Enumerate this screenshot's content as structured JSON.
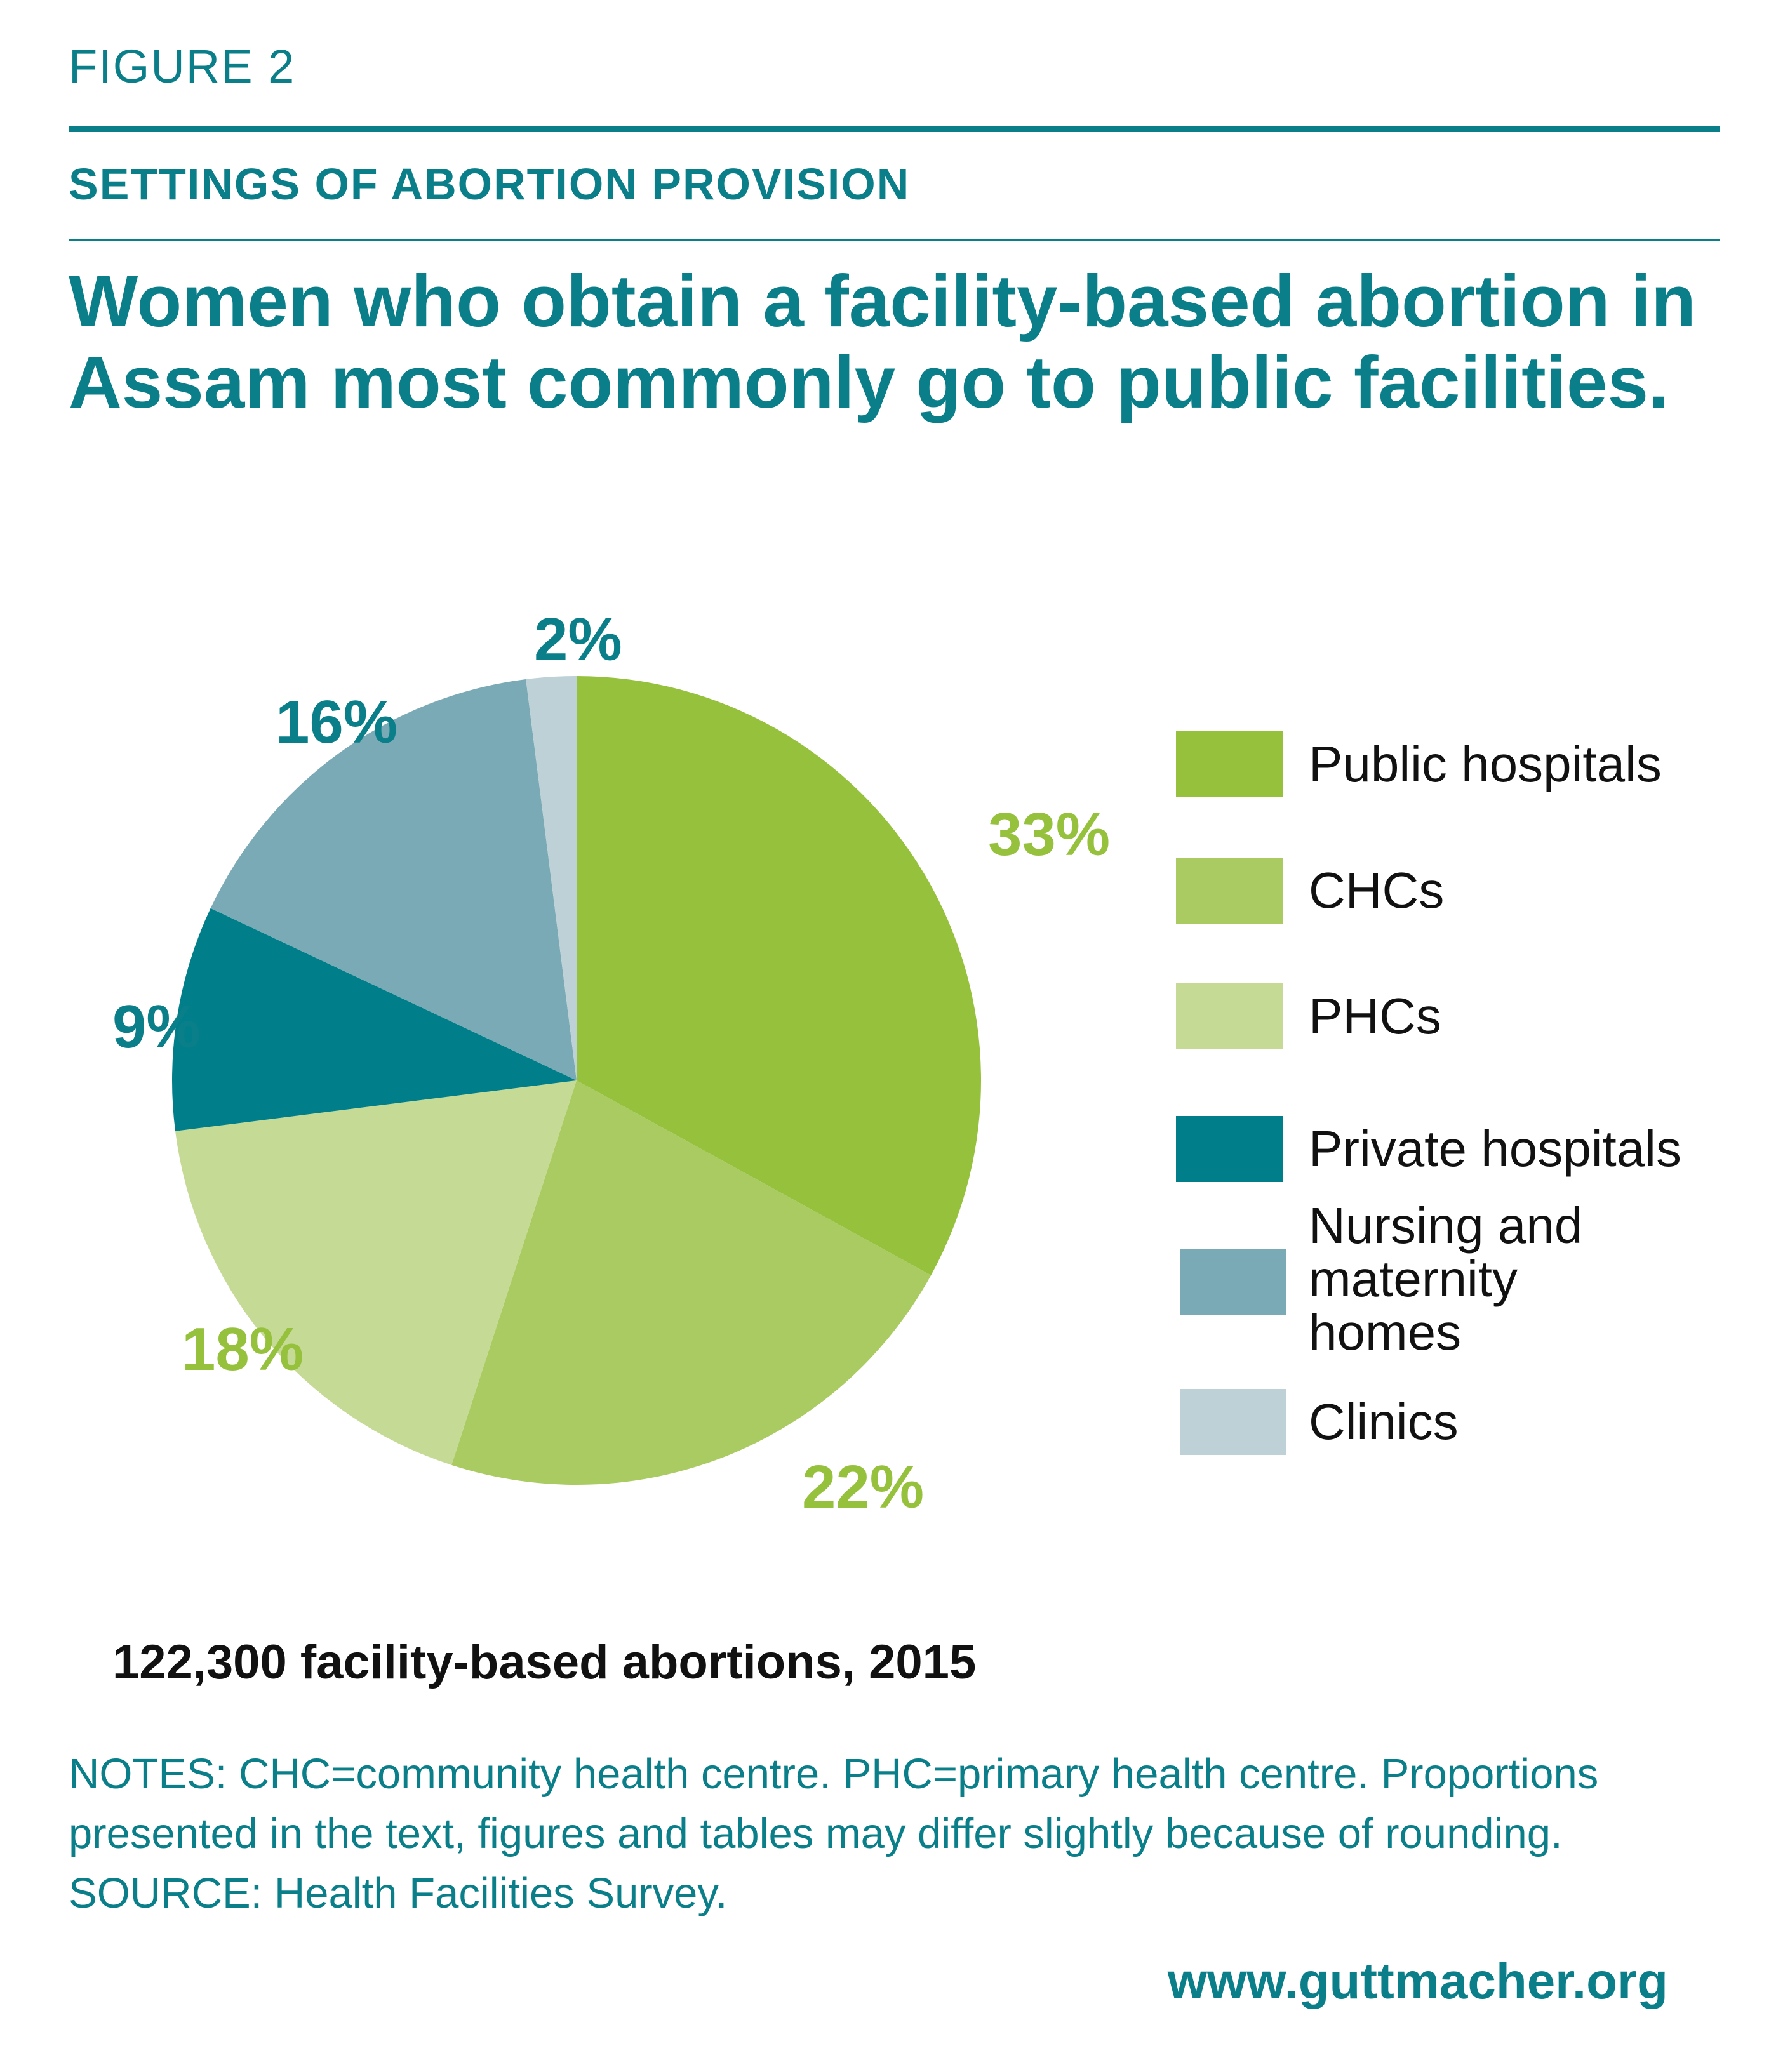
{
  "figure_label": "FIGURE 2",
  "kicker": "SETTINGS OF ABORTION PROVISION",
  "title": "Women who obtain a facility-based abortion in Assam most commonly go to public facilities.",
  "chart_data": {
    "type": "pie",
    "categories": [
      "Public hospitals",
      "CHCs",
      "PHCs",
      "Private hospitals",
      "Nursing and maternity homes",
      "Clinics"
    ],
    "values": [
      33,
      22,
      18,
      9,
      16,
      2
    ],
    "data_labels": [
      "33%",
      "22%",
      "18%",
      "9%",
      "16%",
      "2%"
    ],
    "colors": [
      "#96c13d",
      "#a9cb62",
      "#c5da95",
      "#007f8a",
      "#7aaab5",
      "#bdd1d7"
    ],
    "label_colors": [
      "#96c13d",
      "#96c13d",
      "#96c13d",
      "#0a7f8a",
      "#0a7f8a",
      "#0a7f8a"
    ],
    "start": "top, clockwise",
    "legend_position": "right"
  },
  "total_label": "122,300 facility-based abortions, 2015",
  "notes": "NOTES: CHC=community health centre. PHC=primary health centre. Proportions presented in the text, figures and tables may differ slightly because of rounding. SOURCE: Health Facilities Survey.",
  "url": "www.guttmacher.org"
}
